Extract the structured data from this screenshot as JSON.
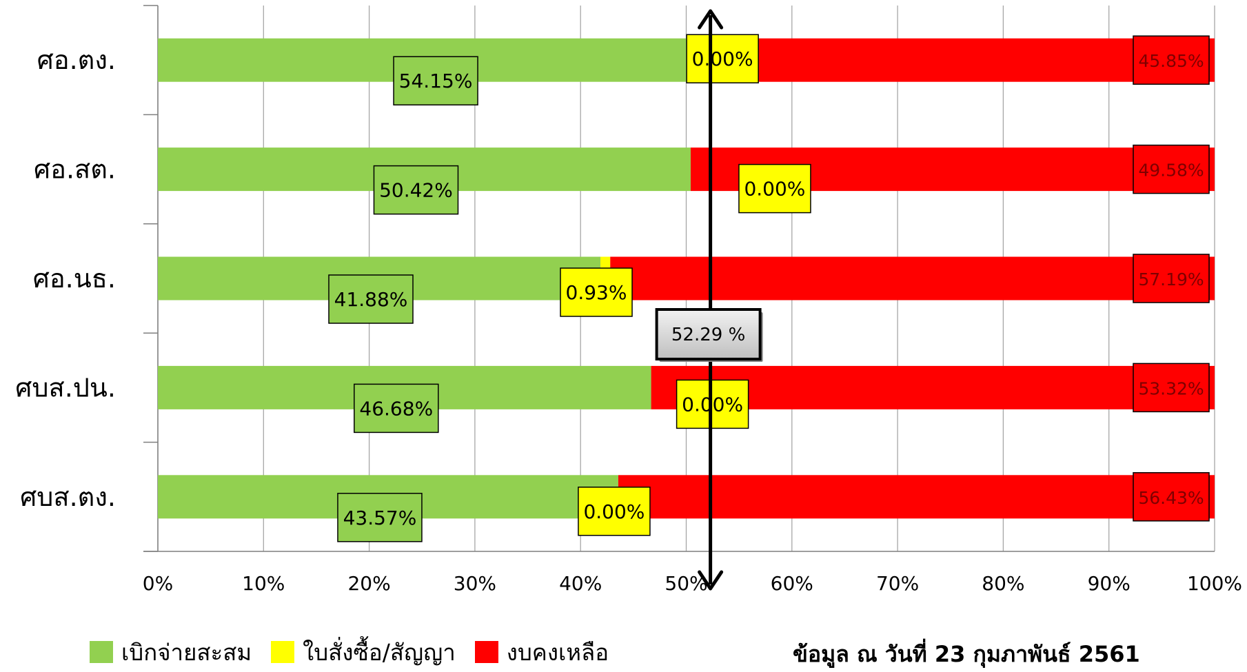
{
  "chart_data": {
    "type": "bar",
    "orientation": "horizontal",
    "stacked": "percent",
    "categories": [
      "ศอ.ตง.",
      "ศอ.สต.",
      "ศอ.นธ.",
      "ศบส.ปน.",
      "ศบส.ตง."
    ],
    "series": [
      {
        "name": "เบิกจ่ายสะสม",
        "color": "#92d050",
        "values": [
          54.15,
          50.42,
          41.88,
          46.68,
          43.57
        ],
        "labels": [
          "54.15%",
          "50.42%",
          "41.88%",
          "46.68%",
          "43.57%"
        ]
      },
      {
        "name": "ใบสั่งซื้อ/สัญญา",
        "color": "#ffff00",
        "values": [
          0.0,
          0.0,
          0.93,
          0.0,
          0.0
        ],
        "labels": [
          "0.00%",
          "0.00%",
          "0.93%",
          "0.00%",
          "0.00%"
        ]
      },
      {
        "name": "งบคงเหลือ",
        "color": "#ff0000",
        "values": [
          45.85,
          49.58,
          57.19,
          53.32,
          56.43
        ],
        "labels": [
          "45.85%",
          "49.58%",
          "57.19%",
          "53.32%",
          "56.43%"
        ]
      }
    ],
    "x_ticks": [
      "0%",
      "10%",
      "20%",
      "30%",
      "40%",
      "50%",
      "60%",
      "70%",
      "80%",
      "90%",
      "100%"
    ],
    "xlim": [
      0,
      100
    ],
    "grid": true,
    "legend_position": "bottom-left",
    "reference_line": {
      "value": 52.29,
      "label": "52.29 %"
    }
  },
  "note": "ข้อมูล ณ วันที่ 23 กุมภาพันธ์ 2561"
}
